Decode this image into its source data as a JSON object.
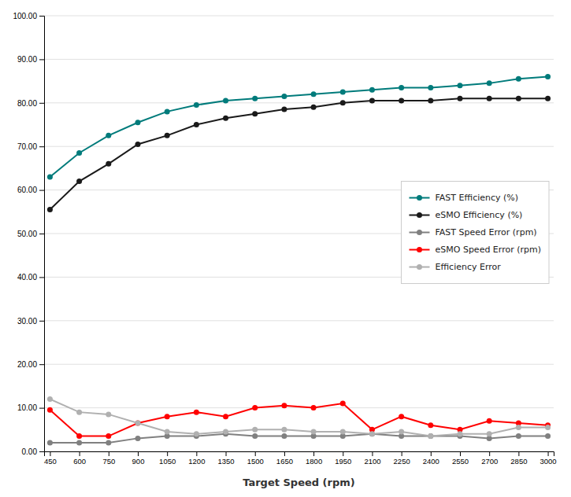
{
  "chart_data": {
    "type": "line",
    "xlabel": "Target Speed (rpm)",
    "x": [
      450,
      600,
      750,
      900,
      1050,
      1200,
      1350,
      1500,
      1650,
      1800,
      1950,
      2100,
      2250,
      2400,
      2550,
      2700,
      2850,
      3000
    ],
    "series": [
      {
        "name": "FAST Efficiency (%)",
        "color": "#007B7B",
        "marker": "circle",
        "values": [
          63.0,
          68.5,
          72.5,
          75.5,
          78.0,
          79.5,
          80.5,
          81.0,
          81.5,
          82.0,
          82.5,
          83.0,
          83.5,
          83.5,
          84.0,
          84.5,
          85.5,
          86.0
        ]
      },
      {
        "name": "eSMO Efficiency (%)",
        "color": "#1a1a1a",
        "marker": "circle",
        "values": [
          55.5,
          62.0,
          66.0,
          70.5,
          72.5,
          75.0,
          76.5,
          77.5,
          78.5,
          79.0,
          80.0,
          80.5,
          80.5,
          80.5,
          81.0,
          81.0,
          81.0,
          81.0
        ]
      },
      {
        "name": "FAST Speed Error (rpm)",
        "color": "#808080",
        "marker": "circle",
        "values": [
          2.0,
          2.0,
          2.0,
          3.0,
          3.5,
          3.5,
          4.0,
          3.5,
          3.5,
          3.5,
          3.5,
          4.0,
          3.5,
          3.5,
          3.5,
          3.0,
          3.5,
          3.5
        ]
      },
      {
        "name": "eSMO Speed Error (rpm)",
        "color": "#ff0000",
        "marker": "circle",
        "values": [
          9.5,
          3.5,
          3.5,
          6.5,
          8.0,
          9.0,
          8.0,
          10.0,
          10.5,
          10.0,
          11.0,
          5.0,
          8.0,
          6.0,
          5.0,
          7.0,
          6.5,
          6.0
        ]
      },
      {
        "name": "Efficiency Error",
        "color": "#b0b0b0",
        "marker": "circle",
        "values": [
          12.0,
          9.0,
          8.5,
          6.5,
          4.5,
          4.0,
          4.5,
          5.0,
          5.0,
          4.5,
          4.5,
          4.0,
          4.5,
          3.5,
          4.0,
          4.0,
          5.5,
          5.5
        ]
      }
    ],
    "xlim": [
      420,
      3030
    ],
    "xticks": [
      450,
      600,
      750,
      900,
      1050,
      1200,
      1350,
      1500,
      1650,
      1800,
      1950,
      2100,
      2250,
      2400,
      2550,
      2700,
      2850,
      3000
    ],
    "ylim": [
      0,
      100
    ],
    "yticks": [
      {
        "value": 0,
        "label": "0.00"
      },
      {
        "value": 10,
        "label": "10.00"
      },
      {
        "value": 20,
        "label": "20.00"
      },
      {
        "value": 30,
        "label": "30.00"
      },
      {
        "value": 40,
        "label": "40.00"
      },
      {
        "value": 50,
        "label": "50.00"
      },
      {
        "value": 60,
        "label": "60.00"
      },
      {
        "value": 70,
        "label": "70.00"
      },
      {
        "value": 80,
        "label": "80.00"
      },
      {
        "value": 90,
        "label": "90.00"
      },
      {
        "value": 100,
        "label": "100.00"
      }
    ],
    "grid": true,
    "legend": "right"
  }
}
